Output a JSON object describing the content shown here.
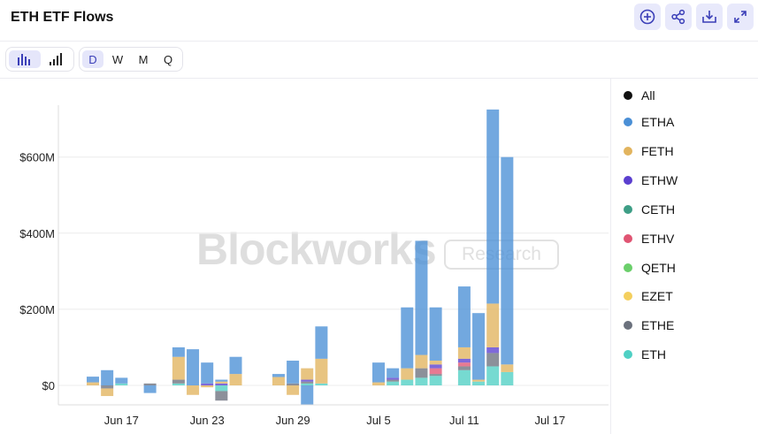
{
  "header": {
    "title": "ETH ETF Flows",
    "buttons": [
      "plus-circle-icon",
      "share-icon",
      "download-icon",
      "expand-icon"
    ]
  },
  "toolbar": {
    "chart_types": [
      "bar-chart-icon",
      "stacked-bar-icon"
    ],
    "periods": [
      "D",
      "W",
      "M",
      "Q"
    ],
    "active_period": "D"
  },
  "watermark": {
    "main": "Blockworks",
    "sub": "Research"
  },
  "legend": [
    {
      "name": "All",
      "color": "#111111"
    },
    {
      "name": "ETHA",
      "color": "#4a8fd6"
    },
    {
      "name": "FETH",
      "color": "#e2b45e"
    },
    {
      "name": "ETHW",
      "color": "#5b3fcf"
    },
    {
      "name": "CETH",
      "color": "#3e9e86"
    },
    {
      "name": "ETHV",
      "color": "#e05573"
    },
    {
      "name": "QETH",
      "color": "#6bcf6b"
    },
    {
      "name": "EZET",
      "color": "#f4cf5e"
    },
    {
      "name": "ETHE",
      "color": "#6b717d"
    },
    {
      "name": "ETH",
      "color": "#4fd0c4"
    }
  ],
  "chart_data": {
    "type": "bar",
    "stacked": true,
    "yticks": [
      "$0",
      "$200M",
      "$400M",
      "$600M"
    ],
    "ytick_values": [
      0,
      200,
      400,
      600
    ],
    "ylim": [
      -50,
      730
    ],
    "xtick_labels": [
      "Jun 17",
      "Jun 23",
      "Jun 29",
      "Jul 5",
      "Jul 11",
      "Jul 17"
    ],
    "xtick_index": [
      2,
      8,
      14,
      20,
      26,
      32
    ],
    "unit": "$M",
    "series_order": [
      "ETH",
      "ETHE",
      "CETH",
      "ETHV",
      "ETHW",
      "FETH",
      "ETHA"
    ],
    "bars": [
      {
        "i": 0,
        "ETHA": 15,
        "FETH": 8
      },
      {
        "i": 1,
        "ETHA": 40,
        "FETH": -20,
        "ETHE": -8
      },
      {
        "i": 2,
        "ETHA": 15,
        "ETH": 5
      },
      {
        "i": 4,
        "ETHA": -20,
        "ETHE": 5
      },
      {
        "i": 6,
        "ETHA": 25,
        "FETH": 60,
        "ETHE": 10,
        "ETH": 5
      },
      {
        "i": 7,
        "ETHA": 95,
        "FETH": -25
      },
      {
        "i": 8,
        "ETHA": 55,
        "ETHW": 5,
        "FETH": -5
      },
      {
        "i": 9,
        "ETHA": 5,
        "ETHW": 5,
        "FETH": 5,
        "ETHE": -25,
        "ETH": -15
      },
      {
        "i": 10,
        "ETHA": 45,
        "FETH": 30
      },
      {
        "i": 13,
        "ETHA": 8,
        "FETH": 22
      },
      {
        "i": 14,
        "ETHA": 60,
        "FETH": -25,
        "ETHE": 5
      },
      {
        "i": 15,
        "ETHA": -50,
        "FETH": 30,
        "ETHW": 5,
        "ETHE": 5,
        "ETH": 5
      },
      {
        "i": 16,
        "ETHA": 85,
        "FETH": 65,
        "ETH": 5
      },
      {
        "i": 20,
        "ETHA": 52,
        "FETH": 8
      },
      {
        "i": 21,
        "ETHA": 25,
        "ETHW": 5,
        "ETHE": 5,
        "ETH": 10
      },
      {
        "i": 22,
        "ETHA": 160,
        "FETH": 30,
        "EZET": 5,
        "ETH": 15
      },
      {
        "i": 23,
        "ETHA": 300,
        "FETH": 35,
        "ETHE": 25,
        "ETH": 20
      },
      {
        "i": 24,
        "ETHA": 140,
        "FETH": 10,
        "ETHW": 10,
        "ETHV": 15,
        "ETHE": 5,
        "ETH": 25
      },
      {
        "i": 26,
        "ETHA": 160,
        "FETH": 30,
        "ETHW": 10,
        "ETHV": 10,
        "QETH": 5,
        "ETHE": 10,
        "ETH": 40
      },
      {
        "i": 27,
        "ETHA": 175,
        "FETH": 5,
        "ETH": 10
      },
      {
        "i": 28,
        "ETHA": 510,
        "FETH": 115,
        "ETHW": 15,
        "ETHE": 35,
        "ETH": 50
      },
      {
        "i": 29,
        "ETHA": 545,
        "FETH": 20,
        "ETH": 35
      }
    ]
  }
}
